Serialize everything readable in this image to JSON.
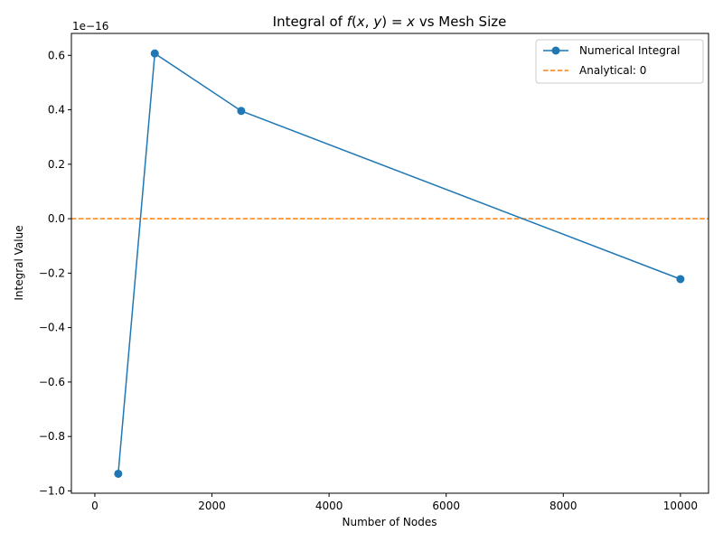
{
  "chart_data": {
    "type": "line",
    "title": "Integral of f(x, y) = x vs Mesh Size",
    "title_parts": {
      "prefix": "Integral of ",
      "f": "f",
      "open": "(",
      "x1": "x",
      "comma": ", ",
      "y": "y",
      "close": ")",
      "eq": " = ",
      "x2": "x",
      "suffix": " vs Mesh Size"
    },
    "xlabel": "Number of Nodes",
    "ylabel": "Integral Value",
    "y_offset_label": "1e−16",
    "xlim": [
      -400,
      10480
    ],
    "ylim": [
      -1.0085,
      0.6806
    ],
    "xticks": [
      0,
      2000,
      4000,
      6000,
      8000,
      10000
    ],
    "xtick_labels": [
      "0",
      "2000",
      "4000",
      "6000",
      "8000",
      "10000"
    ],
    "yticks": [
      -1.0,
      -0.8,
      -0.6,
      -0.4,
      -0.2,
      0.0,
      0.2,
      0.4,
      0.6
    ],
    "ytick_labels": [
      "−1.0",
      "−0.8",
      "−0.6",
      "−0.4",
      "−0.2",
      "0.0",
      "0.2",
      "0.4",
      "0.6"
    ],
    "y_scale_note": "values × 1e−16",
    "grid": false,
    "legend_position": "top-right",
    "series": [
      {
        "name": "Numerical Integral",
        "style": "solid line with circle markers",
        "color": "#1f77b4",
        "x": [
          400,
          1024,
          2500,
          10000
        ],
        "values": [
          -0.937,
          0.607,
          0.396,
          -0.222
        ]
      }
    ],
    "reference_lines": [
      {
        "name": "Analytical: 0",
        "style": "dashed",
        "color": "#ff7f0e",
        "y": 0
      }
    ]
  }
}
